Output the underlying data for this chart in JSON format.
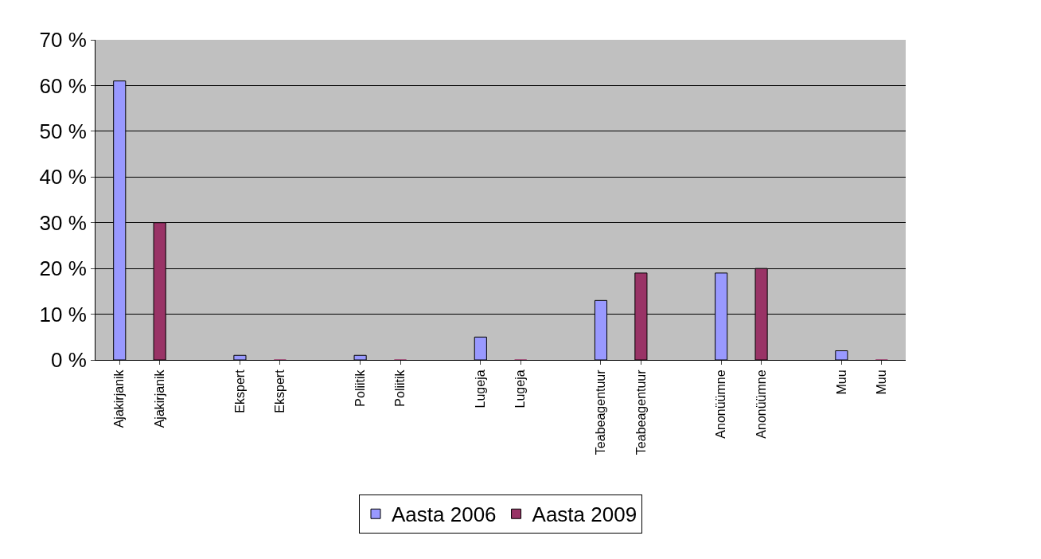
{
  "chart_data": {
    "type": "bar",
    "categories": [
      "Ajakirjanik",
      "Ajakirjanik",
      null,
      "Ekspert",
      "Ekspert",
      null,
      "Poliitik",
      "Poliitik",
      null,
      "Lugeja",
      "Lugeja",
      null,
      "Teabeagentuur",
      "Teabeagentuur",
      null,
      "Anonüümne",
      "Anonüümne",
      null,
      "Muu",
      "Muu"
    ],
    "series": [
      {
        "name": "Aasta 2006",
        "color": "#9999ff",
        "values": [
          61,
          null,
          null,
          1,
          null,
          null,
          1,
          null,
          null,
          5,
          null,
          null,
          13,
          null,
          null,
          19,
          null,
          null,
          2,
          null
        ]
      },
      {
        "name": "Aasta 2009",
        "color": "#993366",
        "values": [
          null,
          30,
          null,
          null,
          0,
          null,
          null,
          0,
          null,
          null,
          0,
          null,
          null,
          19,
          null,
          null,
          20,
          null,
          null,
          0
        ]
      }
    ],
    "ylim": [
      0,
      70
    ],
    "yticks": [
      {
        "value": 0,
        "label": "0 %"
      },
      {
        "value": 10,
        "label": "10 %"
      },
      {
        "value": 20,
        "label": "20 %"
      },
      {
        "value": 30,
        "label": "30 %"
      },
      {
        "value": 40,
        "label": "40 %"
      },
      {
        "value": 50,
        "label": "50 %"
      },
      {
        "value": 60,
        "label": "60 %"
      },
      {
        "value": 70,
        "label": "70 %"
      }
    ],
    "grid": "y",
    "legend": "bottom"
  }
}
